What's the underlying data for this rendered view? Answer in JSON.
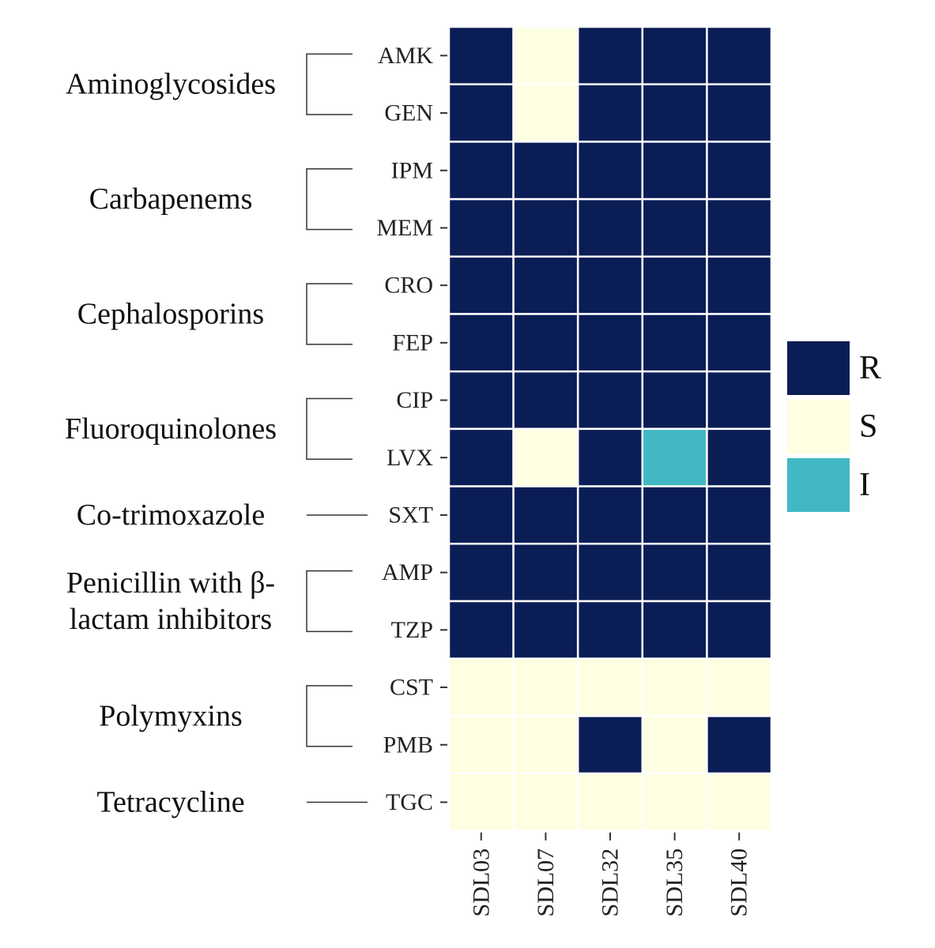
{
  "chart_data": {
    "type": "heatmap",
    "title": "",
    "xlabel": "",
    "ylabel": "",
    "columns": [
      "SDL03",
      "SDL07",
      "SDL32",
      "SDL35",
      "SDL40"
    ],
    "rows": [
      "AMK",
      "GEN",
      "IPM",
      "MEM",
      "CRO",
      "FEP",
      "CIP",
      "LVX",
      "SXT",
      "AMP",
      "TZP",
      "CST",
      "PMB",
      "TGC"
    ],
    "values": [
      [
        "R",
        "S",
        "R",
        "R",
        "R"
      ],
      [
        "R",
        "S",
        "R",
        "R",
        "R"
      ],
      [
        "R",
        "R",
        "R",
        "R",
        "R"
      ],
      [
        "R",
        "R",
        "R",
        "R",
        "R"
      ],
      [
        "R",
        "R",
        "R",
        "R",
        "R"
      ],
      [
        "R",
        "R",
        "R",
        "R",
        "R"
      ],
      [
        "R",
        "R",
        "R",
        "R",
        "R"
      ],
      [
        "R",
        "S",
        "R",
        "I",
        "R"
      ],
      [
        "R",
        "R",
        "R",
        "R",
        "R"
      ],
      [
        "R",
        "R",
        "R",
        "R",
        "R"
      ],
      [
        "R",
        "R",
        "R",
        "R",
        "R"
      ],
      [
        "S",
        "S",
        "S",
        "S",
        "S"
      ],
      [
        "S",
        "S",
        "R",
        "S",
        "R"
      ],
      [
        "S",
        "S",
        "S",
        "S",
        "S"
      ]
    ],
    "groups": [
      {
        "label_lines": [
          "Aminoglycosides"
        ],
        "rows": [
          "AMK",
          "GEN"
        ]
      },
      {
        "label_lines": [
          "Carbapenems"
        ],
        "rows": [
          "IPM",
          "MEM"
        ]
      },
      {
        "label_lines": [
          "Cephalosporins"
        ],
        "rows": [
          "CRO",
          "FEP"
        ]
      },
      {
        "label_lines": [
          "Fluoroquinolones"
        ],
        "rows": [
          "CIP",
          "LVX"
        ]
      },
      {
        "label_lines": [
          "Co-trimoxazole"
        ],
        "rows": [
          "SXT"
        ]
      },
      {
        "label_lines": [
          "Penicillin with β-",
          "lactam inhibitors"
        ],
        "rows": [
          "AMP",
          "TZP"
        ]
      },
      {
        "label_lines": [
          "Polymyxins"
        ],
        "rows": [
          "CST",
          "PMB"
        ]
      },
      {
        "label_lines": [
          "Tetracycline"
        ],
        "rows": [
          "TGC"
        ]
      }
    ],
    "legend": {
      "position": "right",
      "entries": [
        {
          "label": "R",
          "color": "#0b1d55"
        },
        {
          "label": "S",
          "color": "#fefee2"
        },
        {
          "label": "I",
          "color": "#41b8c3"
        }
      ]
    }
  }
}
